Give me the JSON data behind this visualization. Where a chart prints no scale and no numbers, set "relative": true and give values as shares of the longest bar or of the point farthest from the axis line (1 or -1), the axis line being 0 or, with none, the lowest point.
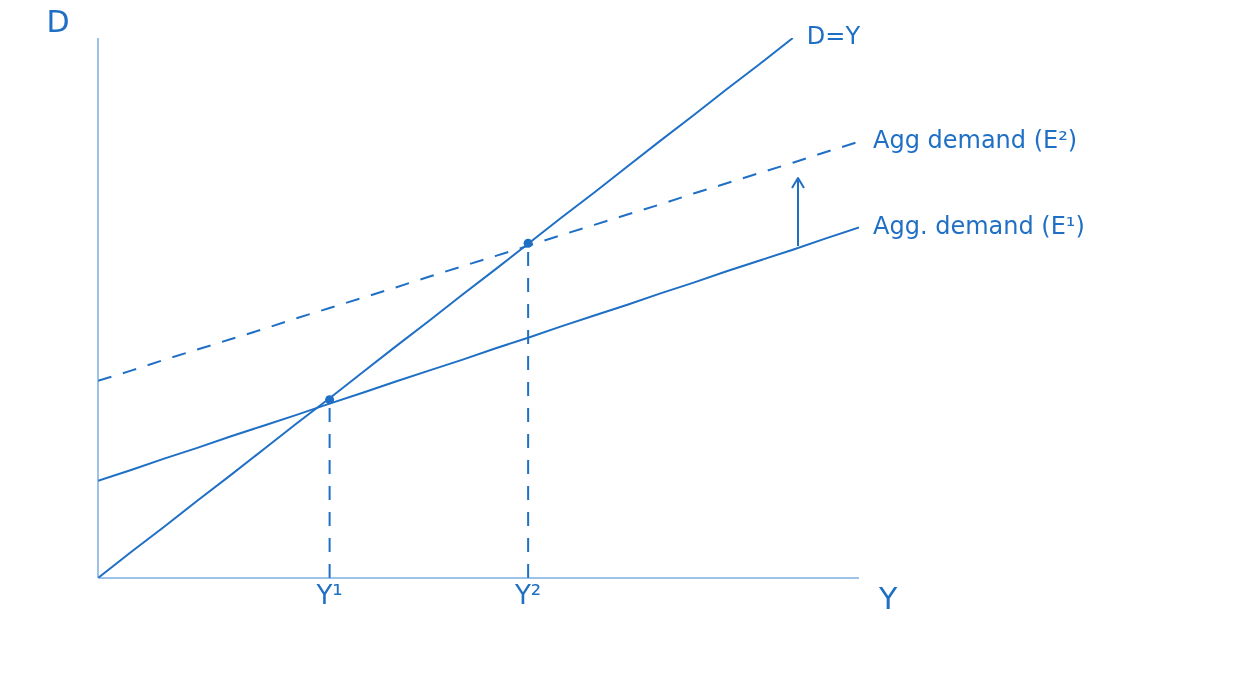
{
  "chart_data": {
    "type": "line",
    "relative": true,
    "xlabel": "Y",
    "ylabel": "D",
    "categories": [
      null,
      null,
      null,
      null,
      null,
      null,
      null,
      "Y¹",
      null,
      null,
      null,
      null,
      null,
      "Y²",
      null,
      null,
      null,
      null,
      null,
      null,
      null,
      null,
      null,
      null
    ],
    "legend": false,
    "series": [
      {
        "name": "D=Y",
        "color": "#1f6fc5",
        "line_style": "solid",
        "values": [
          0,
          0.048,
          0.095,
          0.143,
          0.19,
          0.238,
          0.286,
          0.333,
          0.381,
          0.429,
          0.476,
          0.524,
          0.571,
          0.619,
          0.667,
          0.714,
          0.762,
          0.81,
          0.857,
          0.905,
          0.952,
          1,
          null,
          null
        ]
      },
      {
        "name": "Agg demand (E²)",
        "color": "#1f6fc5",
        "line_style": "dashed",
        "values": [
          0.365,
          0.384,
          0.404,
          0.423,
          0.442,
          0.461,
          0.481,
          0.5,
          0.519,
          0.538,
          0.558,
          0.577,
          0.596,
          0.615,
          0.635,
          0.654,
          0.673,
          0.692,
          0.712,
          0.731,
          0.75,
          0.769,
          0.789,
          0.808
        ]
      },
      {
        "name": "Agg. demand (E¹)",
        "color": "#1f6fc5",
        "line_style": "solid",
        "values": [
          0.18,
          0.2,
          0.221,
          0.241,
          0.262,
          0.282,
          0.302,
          0.323,
          0.343,
          0.364,
          0.384,
          0.404,
          0.425,
          0.445,
          0.466,
          0.486,
          0.506,
          0.527,
          0.547,
          0.568,
          0.588,
          0.608,
          0.629,
          0.649
        ]
      },
      {
        "color": "#1f6fc5",
        "line_style": "dashed",
        "x": [
          "Y¹",
          "Y¹"
        ],
        "values": [
          0,
          0.33
        ]
      },
      {
        "color": "#1f6fc5",
        "line_style": "dashed",
        "x": [
          "Y²",
          "Y²"
        ],
        "values": [
          0,
          0.62
        ]
      },
      {
        "type": "scatter",
        "color": "#1f6fc5",
        "marker": "circle",
        "x": [
          "Y¹",
          "Y²"
        ],
        "values": [
          0.33,
          0.62
        ]
      }
    ]
  }
}
